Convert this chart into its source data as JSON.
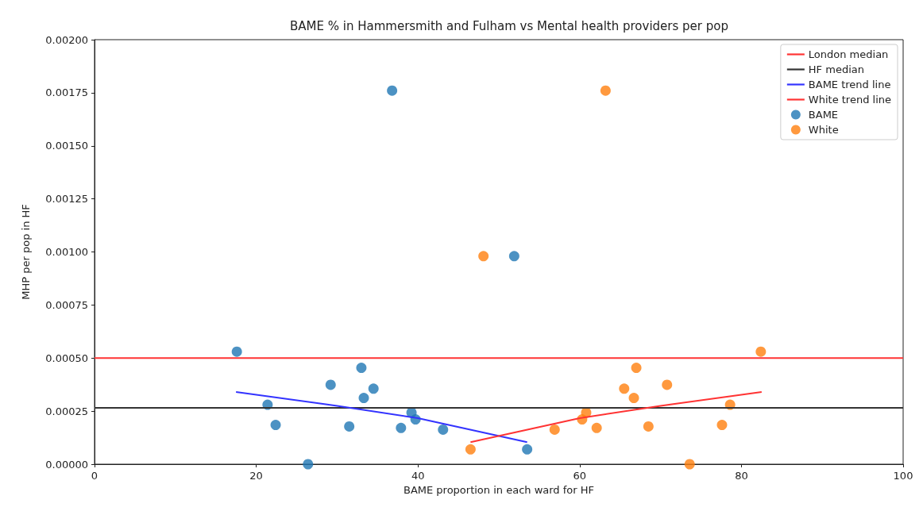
{
  "chart_data": {
    "type": "scatter",
    "title": "BAME % in Hammersmith and Fulham vs Mental health providers per pop",
    "xlabel": "BAME proportion in each ward for HF",
    "ylabel": "MHP per pop in HF",
    "xlim": [
      0,
      100
    ],
    "xticks": [
      0,
      20,
      40,
      60,
      80,
      100
    ],
    "ylim": [
      0,
      0.002
    ],
    "yticks": [
      {
        "value": 0,
        "label": "0.00000"
      },
      {
        "value": 0.00025,
        "label": "0.00025"
      },
      {
        "value": 0.0005,
        "label": "0.00050"
      },
      {
        "value": 0.00075,
        "label": "0.00075"
      },
      {
        "value": 0.001,
        "label": "0.00100"
      },
      {
        "value": 0.00125,
        "label": "0.00125"
      },
      {
        "value": 0.0015,
        "label": "0.00150"
      },
      {
        "value": 0.00175,
        "label": "0.00175"
      },
      {
        "value": 0.002,
        "label": "0.00200"
      }
    ],
    "grid": false,
    "legend": "top right",
    "ref_lines": [
      {
        "axis": "y",
        "value": 0.0005,
        "label": "London median",
        "color": "#ff3333"
      },
      {
        "axis": "y",
        "value": 0.000265,
        "label": "HF median",
        "color": "#333333"
      }
    ],
    "series": [
      {
        "name": "BAME trend line",
        "type": "line",
        "marker": "none",
        "color": "#3333ff",
        "x": [
          17.5,
          30,
          40,
          53.5
        ],
        "values": [
          0.00034,
          0.000275,
          0.000217,
          0.000104
        ]
      },
      {
        "name": "White trend line",
        "type": "line",
        "marker": "none",
        "color": "#ff3333",
        "x": [
          46.5,
          60,
          70,
          82.5
        ],
        "values": [
          0.000104,
          0.000217,
          0.000275,
          0.00034
        ]
      },
      {
        "name": "BAME",
        "marker": "circle",
        "color": "#1f77b4",
        "x": [
          17.6,
          21.4,
          22.4,
          26.4,
          29.2,
          31.5,
          33.0,
          33.3,
          34.5,
          36.8,
          37.9,
          39.2,
          39.7,
          43.1,
          51.9,
          53.5
        ],
        "values": [
          0.00053,
          0.00028,
          0.000185,
          0,
          0.000374,
          0.000178,
          0.000454,
          0.000312,
          0.000356,
          0.00176,
          0.000171,
          0.000243,
          0.000211,
          0.000163,
          0.00098,
          7e-05
        ]
      },
      {
        "name": "White",
        "marker": "circle",
        "color": "#ff7f0e",
        "x": [
          46.5,
          48.1,
          56.9,
          60.3,
          60.8,
          62.1,
          63.2,
          65.5,
          66.7,
          67.0,
          68.5,
          70.8,
          73.6,
          77.6,
          78.6,
          82.4
        ],
        "values": [
          7e-05,
          0.00098,
          0.000163,
          0.000211,
          0.000243,
          0.000171,
          0.00176,
          0.000356,
          0.000312,
          0.000454,
          0.000178,
          0.000374,
          0,
          0.000185,
          0.00028,
          0.00053
        ]
      }
    ]
  }
}
